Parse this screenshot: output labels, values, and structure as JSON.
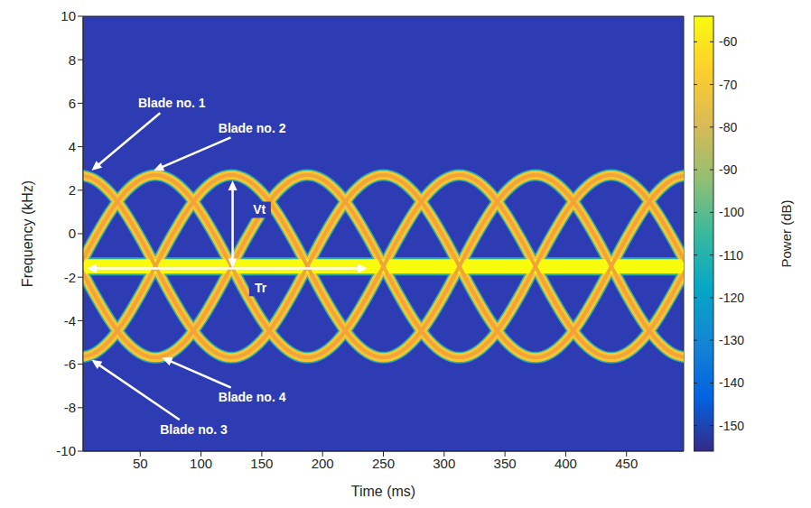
{
  "chart_data": {
    "type": "line",
    "xlabel": "Time (ms)",
    "ylabel": "Frequency (kHz)",
    "grid": false,
    "xlim": [
      3,
      497
    ],
    "xticks": [
      50,
      100,
      150,
      200,
      250,
      300,
      350,
      400,
      450
    ],
    "ylim": [
      -10,
      10
    ],
    "yticks": [
      -10,
      -8,
      -6,
      -4,
      -2,
      0,
      2,
      4,
      6,
      8,
      10
    ],
    "x": [
      0,
      12.5,
      25,
      37.5,
      50,
      62.5,
      75,
      87.5,
      100,
      112.5,
      125,
      137.5,
      150,
      162.5,
      175,
      187.5,
      200,
      212.5,
      225,
      237.5,
      250,
      262.5,
      275,
      287.5,
      300,
      312.5,
      325,
      337.5,
      350,
      362.5,
      375,
      387.5,
      400,
      412.5,
      425,
      437.5,
      450,
      462.5,
      475,
      487.5,
      500
    ],
    "series": [
      {
        "color": "#f7c531",
        "values": [
          2.7,
          2.49,
          1.9,
          0.97,
          -0.2,
          -1.5,
          -2.8,
          -3.97,
          -4.9,
          -5.49,
          -5.7,
          -5.49,
          -4.9,
          -3.97,
          -2.8,
          -1.5,
          -0.2,
          0.97,
          1.9,
          2.49,
          2.7,
          2.49,
          1.9,
          0.97,
          -0.2,
          -1.5,
          -2.8,
          -3.97,
          -4.9,
          -5.49,
          -5.7,
          -5.49,
          -4.9,
          -3.97,
          -2.8,
          -1.5,
          -0.2,
          0.97,
          1.9,
          2.49,
          2.7
        ]
      },
      {
        "color": "#f7c531",
        "values": [
          -1.5,
          -0.2,
          0.97,
          1.9,
          2.49,
          2.7,
          2.49,
          1.9,
          0.97,
          -0.2,
          -1.5,
          -2.8,
          -3.97,
          -4.9,
          -5.49,
          -5.7,
          -5.49,
          -4.9,
          -3.97,
          -2.8,
          -1.5,
          -0.2,
          0.97,
          1.9,
          2.49,
          2.7,
          2.49,
          1.9,
          0.97,
          -0.2,
          -1.5,
          -2.8,
          -3.97,
          -4.9,
          -5.49,
          -5.7,
          -5.49,
          -4.9,
          -3.97,
          -2.8,
          -1.5
        ]
      },
      {
        "color": "#f7c531",
        "values": [
          -5.7,
          -5.49,
          -4.9,
          -3.97,
          -2.8,
          -1.5,
          -0.2,
          0.97,
          1.9,
          2.49,
          2.7,
          2.49,
          1.9,
          0.97,
          -0.2,
          -1.5,
          -2.8,
          -3.97,
          -4.9,
          -5.49,
          -5.7,
          -5.49,
          -4.9,
          -3.97,
          -2.8,
          -1.5,
          -0.2,
          0.97,
          1.9,
          2.49,
          2.7,
          2.49,
          1.9,
          0.97,
          -0.2,
          -1.5,
          -2.8,
          -3.97,
          -4.9,
          -5.49,
          -5.7
        ]
      },
      {
        "color": "#f7c531",
        "values": [
          -1.5,
          -2.8,
          -3.97,
          -4.9,
          -5.49,
          -5.7,
          -5.49,
          -4.9,
          -3.97,
          -2.8,
          -1.5,
          -0.2,
          0.97,
          1.9,
          2.49,
          2.7,
          2.49,
          1.9,
          0.97,
          -0.2,
          -1.5,
          -2.8,
          -3.97,
          -4.9,
          -5.49,
          -5.7,
          -5.49,
          -4.9,
          -3.97,
          -2.8,
          -1.5,
          -0.2,
          0.97,
          1.9,
          2.49,
          2.7,
          2.49,
          1.9,
          0.97,
          -0.2,
          -1.5
        ]
      },
      {
        "color": "#f9fb0e",
        "values": [
          -1.5,
          -1.5,
          -1.5,
          -1.5,
          -1.5,
          -1.5,
          -1.5,
          -1.5,
          -1.5,
          -1.5,
          -1.5,
          -1.5,
          -1.5,
          -1.5,
          -1.5,
          -1.5,
          -1.5,
          -1.5,
          -1.5,
          -1.5,
          -1.5,
          -1.5,
          -1.5,
          -1.5,
          -1.5,
          -1.5,
          -1.5,
          -1.5,
          -1.5,
          -1.5,
          -1.5,
          -1.5,
          -1.5,
          -1.5,
          -1.5,
          -1.5,
          -1.5,
          -1.5,
          -1.5,
          -1.5,
          -1.5
        ]
      }
    ],
    "annotations": [
      {
        "text": "Blade no. 1",
        "xy": [
          10,
          2.9
        ],
        "xytext": [
          76,
          6.0
        ]
      },
      {
        "text": "Blade no. 2",
        "xy": [
          61,
          2.9
        ],
        "xytext": [
          142,
          4.85
        ]
      },
      {
        "text": "Blade no. 3",
        "xy": [
          10,
          -5.8
        ],
        "xytext": [
          94,
          -9.0
        ]
      },
      {
        "text": "Blade no. 4",
        "xy": [
          68,
          -5.7
        ],
        "xytext": [
          142,
          -7.5
        ]
      },
      {
        "text": "Vt",
        "xy": [
          126,
          2.45
        ],
        "xy_end": [
          126,
          -1.6
        ],
        "xytext": [
          148,
          1.1
        ]
      },
      {
        "text": "Tr",
        "xy": [
          6,
          -1.6
        ],
        "xy_end": [
          237,
          -1.6
        ],
        "xytext": [
          149,
          -2.5
        ]
      }
    ],
    "colorbar": {
      "label": "Power (dB)",
      "range": [
        -156,
        -54
      ],
      "ticks": [
        -150,
        -140,
        -130,
        -120,
        -110,
        -100,
        -90,
        -80,
        -70,
        -60
      ]
    }
  }
}
